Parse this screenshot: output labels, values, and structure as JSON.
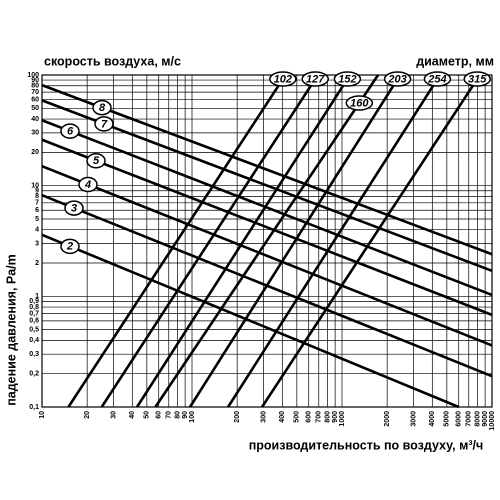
{
  "chart_data": {
    "type": "line",
    "log_x": true,
    "log_y": true,
    "grid": true,
    "color": "#000000",
    "title": "скорость воздуха, м/с",
    "subtitle": "диаметр, мм",
    "y_label": "падение давления, Pa/m",
    "x_label": "производительность по воздуху, м³/ч",
    "xlim": [
      10,
      10000
    ],
    "ylim": [
      0.1,
      100
    ],
    "xticks": [
      10,
      20,
      30,
      40,
      50,
      60,
      70,
      80,
      90,
      100,
      200,
      300,
      400,
      500,
      600,
      700,
      800,
      900,
      1000,
      2000,
      3000,
      4000,
      5000,
      6000,
      7000,
      8000,
      9000,
      10000
    ],
    "yticks": [
      {
        "value": 0.1,
        "label": "0,1"
      },
      {
        "value": 0.2,
        "label": "0,2"
      },
      {
        "value": 0.3,
        "label": "0,3"
      },
      {
        "value": 0.4,
        "label": "0,4"
      },
      {
        "value": 0.5,
        "label": "0,5"
      },
      {
        "value": 0.6,
        "label": "0,6"
      },
      {
        "value": 0.7,
        "label": "0,7"
      },
      {
        "value": 0.8,
        "label": "0,8"
      },
      {
        "value": 0.9,
        "label": "0,9"
      },
      1,
      2,
      3,
      4,
      5,
      6,
      7,
      8,
      9,
      10,
      20,
      30,
      40,
      50,
      60,
      70,
      80,
      90,
      100
    ],
    "series": [
      {
        "name": "102",
        "color": "#000000",
        "x": [
          15,
          420
        ],
        "values": [
          0.1,
          100
        ]
      },
      {
        "name": "127",
        "color": "#000000",
        "x": [
          25,
          690
        ],
        "values": [
          0.1,
          100
        ]
      },
      {
        "name": "152",
        "color": "#000000",
        "x": [
          43,
          1130
        ],
        "values": [
          0.1,
          100
        ]
      },
      {
        "name": "160",
        "color": "#000000",
        "x": [
          57,
          1740
        ],
        "values": [
          0.1,
          100
        ]
      },
      {
        "name": "203",
        "color": "#000000",
        "x": [
          97,
          2440
        ],
        "values": [
          0.1,
          100
        ]
      },
      {
        "name": "254",
        "color": "#000000",
        "x": [
          174,
          4500
        ],
        "values": [
          0.1,
          100
        ]
      },
      {
        "name": "315",
        "color": "#000000",
        "x": [
          293,
          8300
        ],
        "values": [
          0.1,
          100
        ]
      },
      {
        "name": "8",
        "color": "#000000",
        "x": [
          10,
          10000
        ],
        "values": [
          81,
          2.4
        ]
      },
      {
        "name": "7",
        "color": "#000000",
        "x": [
          10,
          10000
        ],
        "values": [
          59,
          1.7
        ]
      },
      {
        "name": "6",
        "color": "#000000",
        "x": [
          10,
          10000
        ],
        "values": [
          39,
          1.03
        ]
      },
      {
        "name": "5",
        "color": "#000000",
        "x": [
          10,
          10000
        ],
        "values": [
          26,
          0.68
        ]
      },
      {
        "name": "4",
        "color": "#000000",
        "x": [
          10,
          10000
        ],
        "values": [
          15,
          0.36
        ]
      },
      {
        "name": "3",
        "color": "#000000",
        "x": [
          10,
          10000
        ],
        "values": [
          8.2,
          0.19
        ]
      },
      {
        "name": "2",
        "color": "#000000",
        "x": [
          10,
          6000
        ],
        "values": [
          3.6,
          0.1
        ]
      }
    ]
  }
}
